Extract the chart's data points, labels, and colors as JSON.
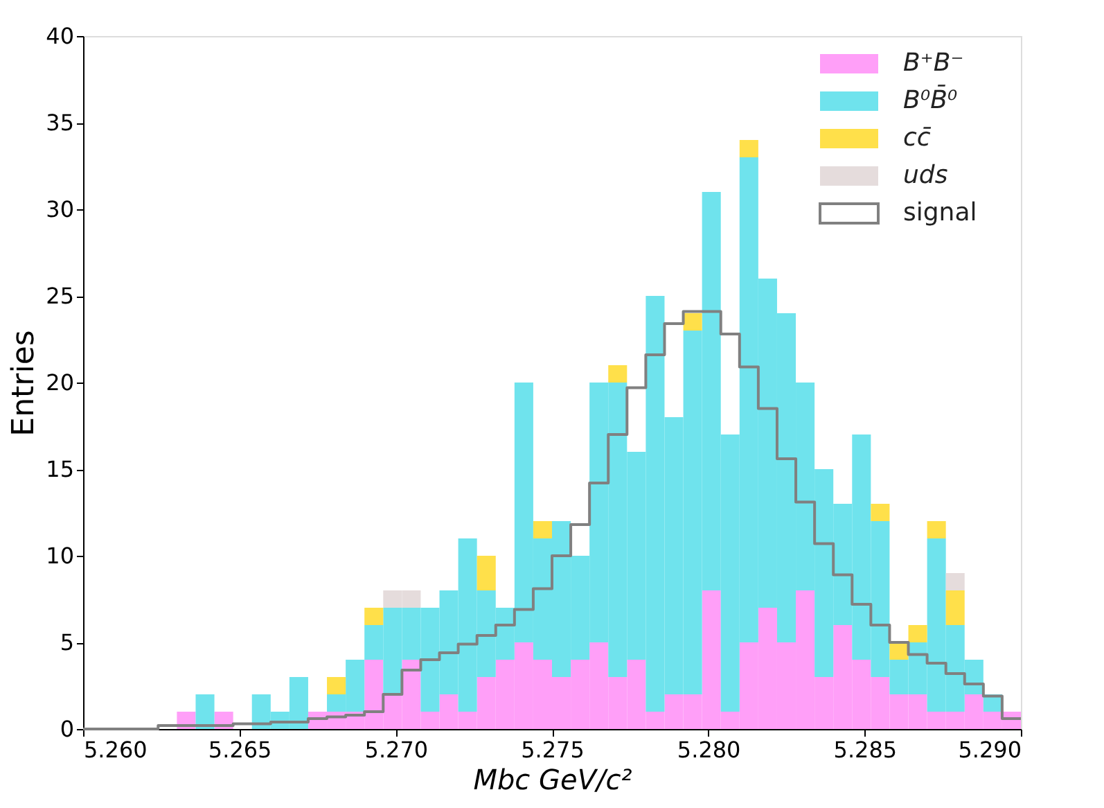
{
  "chart_data": {
    "type": "bar",
    "stacked": true,
    "xlabel": "Mbc GeV/c²",
    "ylabel": "Entries",
    "x": [
      5.2603,
      5.2609,
      5.2615,
      5.2621,
      5.2627,
      5.2633,
      5.2639,
      5.2645,
      5.2651,
      5.2657,
      5.2663,
      5.2669,
      5.2675,
      5.2681,
      5.2687,
      5.2693,
      5.2699,
      5.2705,
      5.2711,
      5.2717,
      5.2723,
      5.2729,
      5.2735,
      5.2741,
      5.2747,
      5.2753,
      5.2759,
      5.2765,
      5.2771,
      5.2777,
      5.2783,
      5.2789,
      5.2795,
      5.2801,
      5.2807,
      5.2813,
      5.2819,
      5.2825,
      5.2831,
      5.2837,
      5.2843,
      5.2849,
      5.2855,
      5.2861,
      5.2867,
      5.2873,
      5.2879,
      5.2885,
      5.2891,
      5.2897
    ],
    "series": [
      {
        "name": "B⁺B⁻",
        "color": "#ff9ff8",
        "values": [
          0,
          0,
          0,
          0,
          0,
          1,
          0,
          1,
          0,
          0,
          0,
          0,
          1,
          1,
          1,
          4,
          2,
          4,
          1,
          2,
          1,
          3,
          4,
          5,
          4,
          3,
          4,
          5,
          3,
          4,
          1,
          2,
          2,
          8,
          1,
          5,
          7,
          5,
          8,
          3,
          6,
          4,
          3,
          2,
          2,
          1,
          1,
          2,
          1,
          1
        ]
      },
      {
        "name": "B⁰B̄⁰",
        "color": "#6fe3ed",
        "values": [
          0,
          0,
          0,
          0,
          0,
          0,
          2,
          0,
          0,
          2,
          1,
          3,
          0,
          1,
          3,
          2,
          5,
          3,
          6,
          6,
          10,
          5,
          3,
          15,
          7,
          9,
          6,
          15,
          17,
          12,
          24,
          16,
          21,
          23,
          16,
          28,
          19,
          19,
          12,
          12,
          7,
          13,
          9,
          2,
          3,
          10,
          5,
          2,
          1,
          0
        ]
      },
      {
        "name": "cc̄",
        "color": "#ffe04a",
        "values": [
          0,
          0,
          0,
          0,
          0,
          0,
          0,
          0,
          0,
          0,
          0,
          0,
          0,
          1,
          0,
          1,
          0,
          0,
          0,
          0,
          0,
          2,
          0,
          0,
          1,
          0,
          0,
          0,
          1,
          0,
          0,
          0,
          1,
          0,
          0,
          1,
          0,
          0,
          0,
          0,
          0,
          0,
          1,
          1,
          1,
          1,
          2,
          0,
          0,
          0
        ]
      },
      {
        "name": "uds",
        "color": "#e5dcdc",
        "values": [
          0,
          0,
          0,
          0,
          0,
          0,
          0,
          0,
          0,
          0,
          0,
          0,
          0,
          0,
          0,
          0,
          1,
          1,
          0,
          0,
          0,
          0,
          0,
          0,
          0,
          0,
          0,
          0,
          0,
          0,
          0,
          0,
          0,
          0,
          0,
          0,
          0,
          0,
          0,
          0,
          0,
          0,
          0,
          0,
          0,
          0,
          1,
          0,
          0,
          0
        ]
      },
      {
        "name": "signal",
        "color": "#808080",
        "type": "step",
        "x": [
          5.26,
          5.2606,
          5.2612,
          5.2618,
          5.2624,
          5.263,
          5.2636,
          5.2642,
          5.2648,
          5.2654,
          5.266,
          5.2666,
          5.2672,
          5.2678,
          5.2684,
          5.269,
          5.2696,
          5.2702,
          5.2708,
          5.2714,
          5.272,
          5.2726,
          5.2732,
          5.2738,
          5.2744,
          5.275,
          5.2756,
          5.2762,
          5.2768,
          5.2774,
          5.278,
          5.2786,
          5.2792,
          5.2798,
          5.2804,
          5.281,
          5.2816,
          5.2822,
          5.2828,
          5.2834,
          5.284,
          5.2846,
          5.2852,
          5.2858,
          5.2864,
          5.287,
          5.2876,
          5.2882,
          5.2888,
          5.2894,
          5.29
        ],
        "values": [
          0,
          0,
          0,
          0,
          0.2,
          0.2,
          0.2,
          0.2,
          0.3,
          0.3,
          0.4,
          0.4,
          0.6,
          0.7,
          0.8,
          1.0,
          2.0,
          3.4,
          4.0,
          4.4,
          4.9,
          5.4,
          6.0,
          6.9,
          8.1,
          10.0,
          11.8,
          14.2,
          17.0,
          19.7,
          21.6,
          23.4,
          24.1,
          24.1,
          22.8,
          20.9,
          18.5,
          15.6,
          13.1,
          10.7,
          8.9,
          7.2,
          6.0,
          5.0,
          4.3,
          3.8,
          3.2,
          2.6,
          1.9,
          0.6,
          0.6
        ]
      }
    ],
    "xlim": [
      5.26,
      5.29
    ],
    "xticks": [
      {
        "value": 5.26,
        "label": "5.260"
      },
      {
        "value": 5.265,
        "label": "5.265"
      },
      {
        "value": 5.27,
        "label": "5.270"
      },
      {
        "value": 5.275,
        "label": "5.275"
      },
      {
        "value": 5.28,
        "label": "5.280"
      },
      {
        "value": 5.285,
        "label": "5.285"
      },
      {
        "value": 5.29,
        "label": "5.290"
      }
    ],
    "ylim": [
      0,
      40
    ],
    "yticks": [
      0,
      5,
      10,
      15,
      20,
      25,
      30,
      35,
      40
    ],
    "grid": false,
    "legend": "top right"
  }
}
